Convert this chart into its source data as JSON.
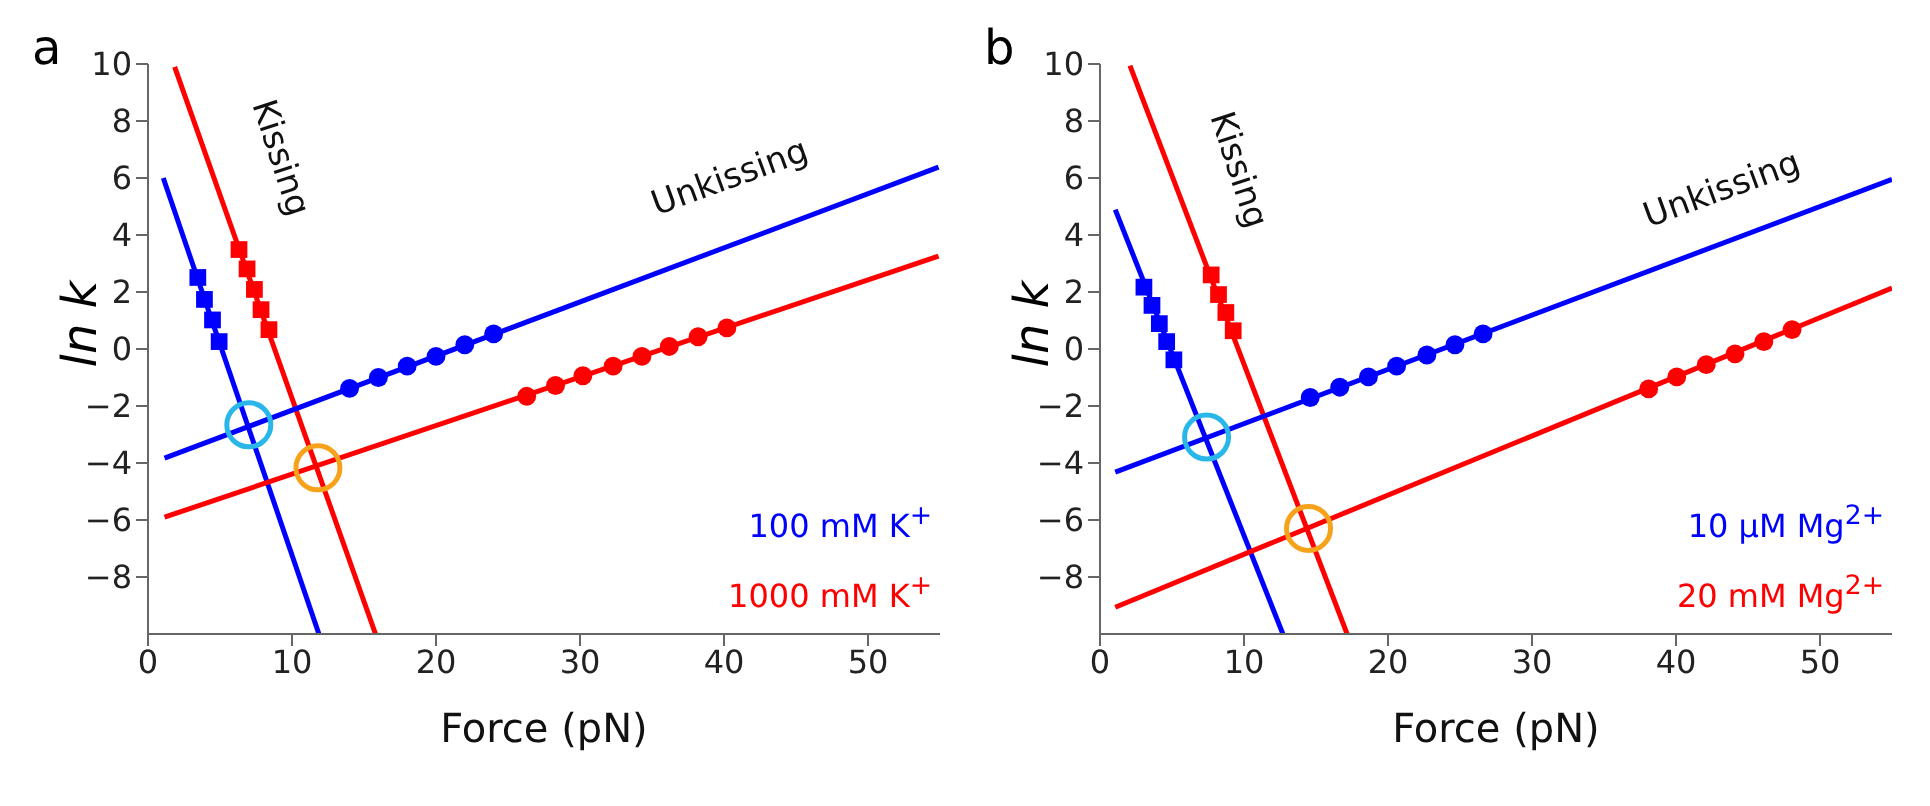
{
  "chart_data": [
    {
      "type": "scatter",
      "title": "a",
      "xlabel": "Force (pN)",
      "ylabel": "ln k",
      "xlim": [
        0,
        55
      ],
      "xticks": [
        0,
        10,
        20,
        30,
        40,
        50
      ],
      "ylim": [
        -10,
        10
      ],
      "yticks": [
        -8,
        -6,
        -4,
        -2,
        0,
        2,
        4,
        6,
        8,
        10
      ],
      "grid": false,
      "legend": "bottom right",
      "annotations": [
        "Kissing",
        "Unkissing"
      ],
      "series": [
        {
          "type": "line",
          "color": "#0000ff",
          "marker": "none",
          "x": [
            1.06,
            11.87
          ],
          "values": [
            6.0,
            -10
          ]
        },
        {
          "type": "line",
          "color": "#ff0000",
          "marker": "none",
          "x": [
            1.85,
            15.8
          ],
          "values": [
            9.9,
            -10
          ]
        },
        {
          "type": "line",
          "name": "100 mM K$^{+}$",
          "color": "#0000ff",
          "marker": "none",
          "x": [
            1.15,
            54.9
          ],
          "values": [
            -3.83,
            6.38
          ]
        },
        {
          "type": "line",
          "name": "1000 mM K$^{+}$",
          "color": "#ff0000",
          "marker": "none",
          "x": [
            1.15,
            54.9
          ],
          "values": [
            -5.9,
            3.26
          ]
        },
        {
          "type": "scatter",
          "color": "#0000ff",
          "marker": "square",
          "x": [
            3.46,
            3.92,
            4.48,
            4.94
          ],
          "values": [
            2.51,
            1.74,
            1.02,
            0.26
          ]
        },
        {
          "type": "scatter",
          "color": "#ff0000",
          "marker": "square",
          "x": [
            6.32,
            6.88,
            7.39,
            7.85,
            8.4
          ],
          "values": [
            3.49,
            2.81,
            2.09,
            1.38,
            0.68
          ]
        },
        {
          "type": "scatter",
          "color": "#0000ff",
          "marker": "circle",
          "x": [
            14.0,
            16.0,
            18.0,
            20.0,
            22.0,
            24.0
          ],
          "values": [
            -1.38,
            -1.0,
            -0.6,
            -0.26,
            0.15,
            0.53
          ]
        },
        {
          "type": "scatter",
          "color": "#ff0000",
          "marker": "circle",
          "x": [
            26.3,
            28.3,
            30.2,
            32.3,
            34.3,
            36.2,
            38.2,
            40.2
          ],
          "values": [
            -1.66,
            -1.28,
            -0.94,
            -0.6,
            -0.26,
            0.09,
            0.43,
            0.74
          ]
        },
        {
          "type": "bubble",
          "color": "#29b6e8",
          "x": [
            7.0
          ],
          "values": [
            -2.66
          ],
          "sizes": [
            1
          ]
        },
        {
          "type": "bubble",
          "color": "#f7a21b",
          "x": [
            11.8
          ],
          "values": [
            -4.17
          ],
          "sizes": [
            1
          ]
        }
      ]
    },
    {
      "type": "scatter",
      "title": "b",
      "xlabel": "Force (pN)",
      "ylabel": "ln k",
      "xlim": [
        0,
        55
      ],
      "xticks": [
        0,
        10,
        20,
        30,
        40,
        50
      ],
      "ylim": [
        -10,
        10
      ],
      "yticks": [
        -8,
        -6,
        -4,
        -2,
        0,
        2,
        4,
        6,
        8,
        10
      ],
      "grid": false,
      "legend": "bottom right",
      "annotations": [
        "Kissing",
        "Unkissing"
      ],
      "series": [
        {
          "type": "line",
          "color": "#0000ff",
          "marker": "none",
          "x": [
            1.06,
            12.7
          ],
          "values": [
            4.89,
            -10
          ]
        },
        {
          "type": "line",
          "color": "#ff0000",
          "marker": "none",
          "x": [
            2.08,
            17.16
          ],
          "values": [
            9.94,
            -10
          ]
        },
        {
          "type": "line",
          "name": "10 μM Mg$^{2+}$",
          "color": "#0000ff",
          "marker": "none",
          "x": [
            1.06,
            55
          ],
          "values": [
            -4.32,
            5.95
          ]
        },
        {
          "type": "line",
          "name": "20 mM Mg$^{2+}$",
          "color": "#ff0000",
          "marker": "none",
          "x": [
            1.06,
            55
          ],
          "values": [
            -9.06,
            2.14
          ]
        },
        {
          "type": "scatter",
          "color": "#0000ff",
          "marker": "square",
          "x": [
            3.05,
            3.61,
            4.12,
            4.63,
            5.13
          ],
          "values": [
            2.17,
            1.53,
            0.89,
            0.26,
            -0.38
          ]
        },
        {
          "type": "scatter",
          "color": "#ff0000",
          "marker": "square",
          "x": [
            7.72,
            8.23,
            8.74,
            9.25
          ],
          "values": [
            2.6,
            1.91,
            1.28,
            0.64
          ]
        },
        {
          "type": "scatter",
          "color": "#0000ff",
          "marker": "circle",
          "x": [
            14.6,
            16.65,
            18.64,
            20.6,
            22.7,
            24.65,
            26.6
          ],
          "values": [
            -1.7,
            -1.34,
            -0.98,
            -0.6,
            -0.21,
            0.15,
            0.53
          ]
        },
        {
          "type": "scatter",
          "color": "#ff0000",
          "marker": "circle",
          "x": [
            38.1,
            40.05,
            42.1,
            44.1,
            46.1,
            48.06
          ],
          "values": [
            -1.4,
            -0.98,
            -0.55,
            -0.17,
            0.26,
            0.68
          ]
        },
        {
          "type": "bubble",
          "color": "#29b6e8",
          "x": [
            7.4
          ],
          "values": [
            -3.09
          ],
          "sizes": [
            1
          ]
        },
        {
          "type": "bubble",
          "color": "#f7a21b",
          "x": [
            14.48
          ],
          "values": [
            -6.3
          ],
          "sizes": [
            1
          ]
        }
      ]
    }
  ]
}
